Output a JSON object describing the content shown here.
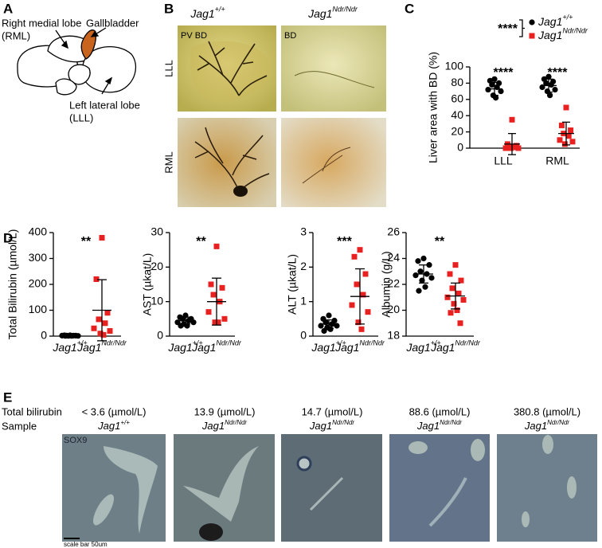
{
  "panel_a": {
    "label": "A",
    "labels": [
      "Right medial lobe",
      "(RML)",
      "Gallbladder",
      "Left lateral lobe",
      "(LLL)"
    ]
  },
  "panel_b": {
    "label": "B",
    "columns": [
      {
        "text": "Jag1",
        "sup": "+/+"
      },
      {
        "text": "Jag1",
        "sup": "Ndr/Ndr"
      }
    ],
    "rows": [
      "LLL",
      "RML"
    ],
    "image_labels": [
      "PV BD",
      "BD"
    ]
  },
  "panel_c": {
    "label": "C"
  },
  "panel_d": {
    "label": "D"
  },
  "panel_e": {
    "label": "E",
    "row_labels": [
      "Total bilirubin",
      "Sample"
    ],
    "columns": [
      {
        "bilirubin": "< 3.6 (µmol/L)",
        "sample": "Jag1",
        "sup": "+/+"
      },
      {
        "bilirubin": "13.9 (µmol/L)",
        "sample": "Jag1",
        "sup": "Ndr/Ndr"
      },
      {
        "bilirubin": "14.7 (µmol/L)",
        "sample": "Jag1",
        "sup": "Ndr/Ndr"
      },
      {
        "bilirubin": "88.6 (µmol/L)",
        "sample": "Jag1",
        "sup": "Ndr/Ndr"
      },
      {
        "bilirubin": "380.8 (µmol/L)",
        "sample": "Jag1",
        "sup": "Ndr/Ndr"
      }
    ],
    "stain": "SOX9",
    "scale_bar": "scale bar 50um"
  },
  "chart_data": [
    {
      "type": "strip",
      "y_label": "Liver area with BD (%)",
      "categories": [
        "LLL",
        "RML"
      ],
      "ylim": [
        0,
        100
      ],
      "yticks": [
        0,
        20,
        40,
        60,
        80,
        100
      ],
      "series": [
        {
          "name": "Jag1",
          "name_sup": "+/+",
          "color": "#000000",
          "marker": "circle",
          "values": [
            [
              85,
              83,
              80,
              78,
              75,
              72,
              70,
              65,
              62
            ],
            [
              88,
              85,
              82,
              80,
              78,
              75,
              72,
              70,
              65
            ]
          ],
          "mean": [
            73,
            77
          ],
          "sd": [
            8,
            8
          ]
        },
        {
          "name": "Jag1",
          "name_sup": "Ndr/Ndr",
          "color": "#e8201f",
          "marker": "square",
          "values": [
            [
              35,
              5,
              3,
              2,
              1,
              0,
              0,
              0
            ],
            [
              50,
              28,
              22,
              18,
              15,
              10,
              8,
              5
            ]
          ],
          "mean": [
            5,
            18
          ],
          "sd": [
            13,
            14
          ]
        }
      ],
      "significance": [
        "****",
        "****"
      ],
      "legend_significance": "****"
    },
    {
      "type": "strip",
      "y_label": "Total Bilirubin (µmol/L)",
      "categories": [
        "Jag1",
        "Jag1"
      ],
      "category_sup": [
        "+/+",
        "Ndr/Ndr"
      ],
      "ylim": [
        0,
        400
      ],
      "yticks": [
        0,
        100,
        200,
        300,
        400
      ],
      "groups": [
        {
          "color": "#000000",
          "marker": "circle",
          "values": [
            3,
            3,
            2,
            2,
            2,
            2,
            1,
            1,
            1,
            1
          ],
          "mean": 2,
          "sd": 1
        },
        {
          "color": "#e8201f",
          "marker": "square",
          "values": [
            380,
            220,
            90,
            65,
            50,
            30,
            20,
            10,
            5
          ],
          "mean": 100,
          "sd": 118
        }
      ],
      "significance": "**"
    },
    {
      "type": "strip",
      "y_label": "AST (µkat/L)",
      "categories": [
        "Jag1",
        "Jag1"
      ],
      "category_sup": [
        "+/+",
        "Ndr/Ndr"
      ],
      "ylim": [
        0,
        30
      ],
      "yticks": [
        0,
        10,
        20,
        30
      ],
      "groups": [
        {
          "color": "#000000",
          "marker": "circle",
          "values": [
            6,
            5.5,
            5,
            5,
            4.5,
            4,
            4,
            3.5,
            3,
            3
          ],
          "mean": 4.5,
          "sd": 1
        },
        {
          "color": "#e8201f",
          "marker": "square",
          "values": [
            26,
            15,
            14,
            12,
            10,
            7,
            5,
            4,
            4
          ],
          "mean": 10,
          "sd": 6.8
        }
      ],
      "significance": "**"
    },
    {
      "type": "strip",
      "y_label": "ALT (µkat/L)",
      "categories": [
        "Jag1",
        "Jag1"
      ],
      "category_sup": [
        "+/+",
        "Ndr/Ndr"
      ],
      "ylim": [
        0,
        3
      ],
      "yticks": [
        0,
        1,
        2,
        3
      ],
      "groups": [
        {
          "color": "#000000",
          "marker": "circle",
          "values": [
            0.6,
            0.5,
            0.45,
            0.4,
            0.35,
            0.3,
            0.3,
            0.25,
            0.2,
            0.15
          ],
          "mean": 0.35,
          "sd": 0.12
        },
        {
          "color": "#e8201f",
          "marker": "square",
          "values": [
            2.5,
            2.3,
            1.8,
            1.5,
            1.2,
            0.9,
            0.7,
            0.4,
            0.2
          ],
          "mean": 1.15,
          "sd": 0.8
        }
      ],
      "significance": "***"
    },
    {
      "type": "strip",
      "y_label": "Albumin (g/L)",
      "categories": [
        "Jag1",
        "Jag1"
      ],
      "category_sup": [
        "+/+",
        "Ndr/Ndr"
      ],
      "ylim": [
        18,
        26
      ],
      "yticks": [
        18,
        20,
        22,
        24,
        26
      ],
      "groups": [
        {
          "color": "#000000",
          "marker": "circle",
          "values": [
            24,
            23.8,
            23.5,
            23,
            22.8,
            22.7,
            22.5,
            22.3,
            21.8,
            21.5
          ],
          "mean": 22.8,
          "sd": 0.7
        },
        {
          "color": "#e8201f",
          "marker": "square",
          "values": [
            23.5,
            22.8,
            22.3,
            21.7,
            21.3,
            21,
            20.8,
            20.5,
            20,
            19.8,
            19
          ],
          "mean": 21.1,
          "sd": 1
        }
      ],
      "significance": "**"
    }
  ]
}
